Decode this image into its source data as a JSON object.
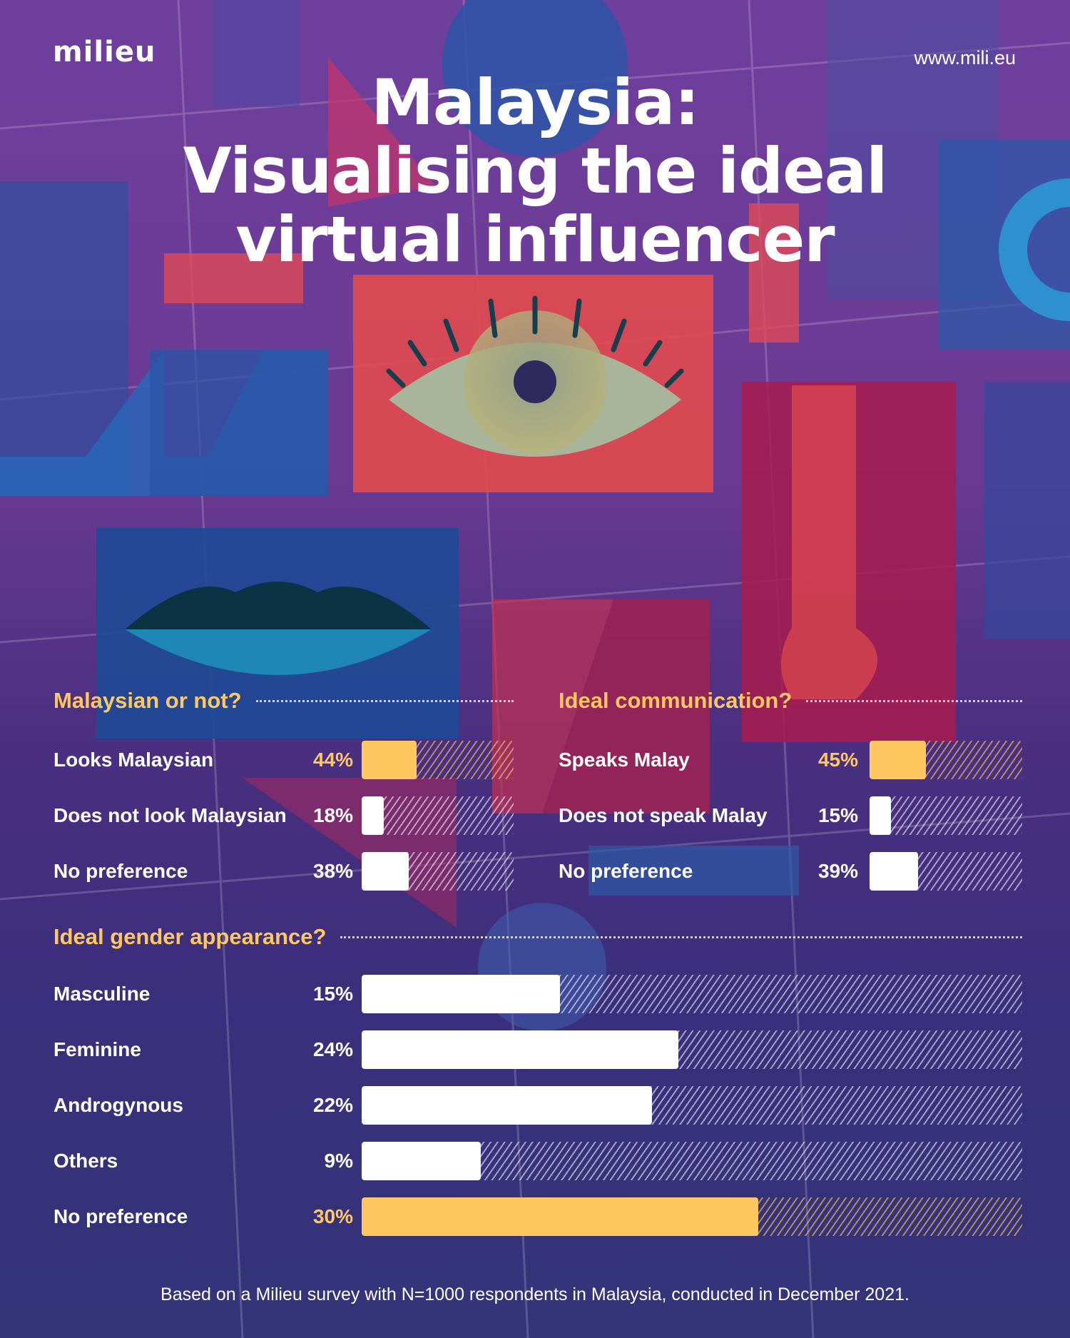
{
  "header": {
    "logo_text": "milieu",
    "website": "www.mili.eu",
    "title_lines": [
      "Malaysia:",
      "Visualising the ideal",
      "virtual influencer"
    ]
  },
  "colors": {
    "highlight": "#ffc760",
    "bar_default": "#ffffff",
    "background_top": "#6f3f9e",
    "background_bottom": "#343479"
  },
  "footnote": "Based on a Milieu survey with N=1000 respondents in Malaysia, conducted in December 2021.",
  "chart_data": [
    {
      "type": "bar",
      "orientation": "horizontal",
      "title": "Malaysian or not?",
      "categories": [
        "Looks Malaysian",
        "Does not look Malaysian",
        "No preference"
      ],
      "values": [
        44,
        18,
        38
      ],
      "value_labels": [
        "44%",
        "18%",
        "38%"
      ],
      "highlight": [
        true,
        false,
        false
      ],
      "unit": "%",
      "xlim": [
        0,
        100
      ]
    },
    {
      "type": "bar",
      "orientation": "horizontal",
      "title": "Ideal communication?",
      "categories": [
        "Speaks Malay",
        "Does not speak Malay",
        "No preference"
      ],
      "values": [
        45,
        15,
        39
      ],
      "value_labels": [
        "45%",
        "15%",
        "39%"
      ],
      "highlight": [
        true,
        false,
        false
      ],
      "unit": "%",
      "xlim": [
        0,
        100
      ]
    },
    {
      "type": "bar",
      "orientation": "horizontal",
      "title": "Ideal gender appearance?",
      "categories": [
        "Masculine",
        "Feminine",
        "Androgynous",
        "Others",
        "No preference"
      ],
      "values": [
        15,
        24,
        22,
        9,
        30
      ],
      "value_labels": [
        "15%",
        "24%",
        "22%",
        "9%",
        "30%"
      ],
      "highlight": [
        false,
        false,
        false,
        false,
        true
      ],
      "unit": "%",
      "xlim": [
        0,
        100
      ]
    }
  ]
}
